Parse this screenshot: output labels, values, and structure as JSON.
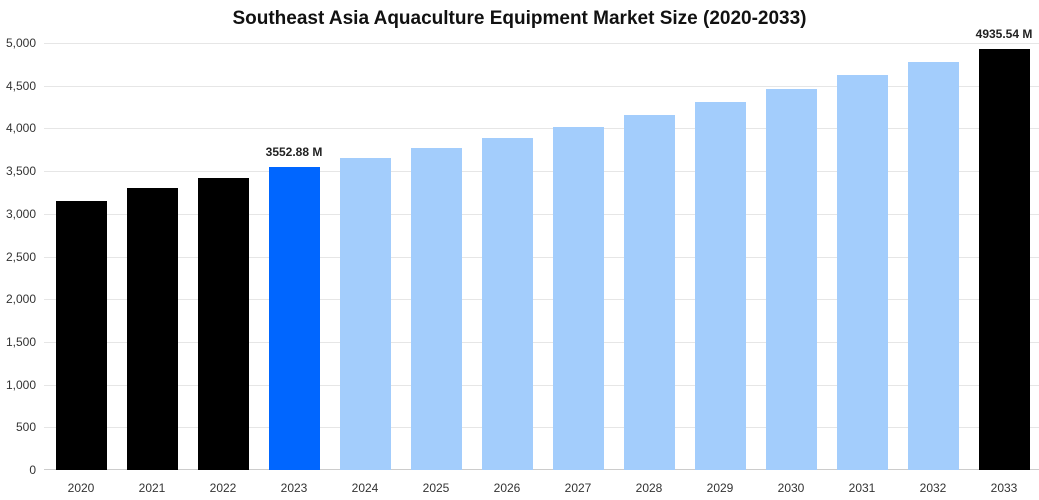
{
  "chart_data": {
    "type": "bar",
    "title": "Southeast Asia Aquaculture Equipment Market Size (2020-2033)",
    "xlabel": "",
    "ylabel": "",
    "ylim": [
      0,
      5000
    ],
    "yticks": [
      0,
      500,
      1000,
      1500,
      2000,
      2500,
      3000,
      3500,
      4000,
      4500,
      5000
    ],
    "ytick_labels": [
      "0",
      "500",
      "1,000",
      "1,500",
      "2,000",
      "2,500",
      "3,000",
      "3,500",
      "4,000",
      "4,500",
      "5,000"
    ],
    "grid": true,
    "legend": null,
    "categories": [
      "2020",
      "2021",
      "2022",
      "2023",
      "2024",
      "2025",
      "2026",
      "2027",
      "2028",
      "2029",
      "2030",
      "2031",
      "2032",
      "2033"
    ],
    "values": [
      3150,
      3302,
      3419,
      3552.88,
      3653,
      3770,
      3888,
      4016,
      4157,
      4309,
      4461,
      4625,
      4778,
      4935.54
    ],
    "colors": [
      "#000000",
      "#000000",
      "#000000",
      "#0066ff",
      "#a3cdfc",
      "#a3cdfc",
      "#a3cdfc",
      "#a3cdfc",
      "#a3cdfc",
      "#a3cdfc",
      "#a3cdfc",
      "#a3cdfc",
      "#a3cdfc",
      "#000000"
    ],
    "annotations": [
      {
        "category": "2023",
        "label": "3552.88 M"
      },
      {
        "category": "2033",
        "label": "4935.54 M"
      }
    ]
  }
}
